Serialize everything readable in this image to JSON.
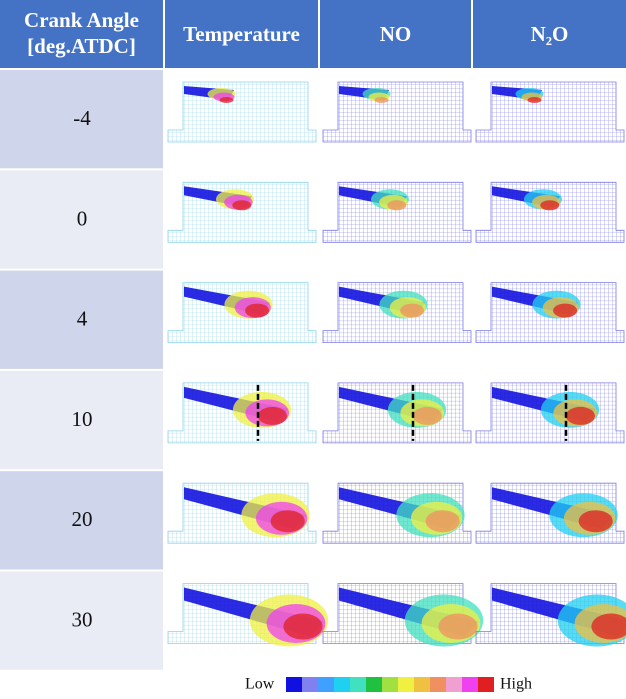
{
  "header": {
    "columns": [
      [
        "Crank Angle",
        "[deg.ATDC]"
      ],
      "Temperature",
      "NO",
      "N₂O"
    ]
  },
  "rows": [
    "-4",
    "0",
    "4",
    "10",
    "20",
    "30"
  ],
  "legend": {
    "low": "Low",
    "high": "High",
    "colors": [
      "#1010e0",
      "#8080f0",
      "#40a0ff",
      "#20d0f0",
      "#40e0c0",
      "#20c040",
      "#a0e040",
      "#f0f040",
      "#f0c040",
      "#f09060",
      "#f0a0d0",
      "#f040f0",
      "#e02020"
    ]
  }
}
